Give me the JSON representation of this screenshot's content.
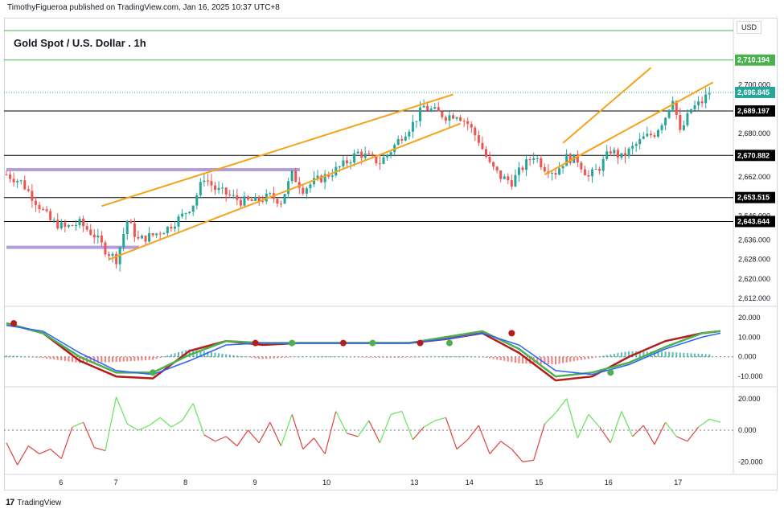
{
  "header": {
    "attribution": "TimothyFigueroa published on TradingView.com, Jan 16, 2025 10:37 UTC+8",
    "symbol_title": "Gold Spot / U.S. Dollar . 1h",
    "currency": "USD"
  },
  "footer": {
    "brand": "TradingView"
  },
  "colors": {
    "up": "#26a69a",
    "down": "#ef5350",
    "channel": "#f7a21b",
    "zone": "#b39ddb",
    "green_line": "#4caf50",
    "signal_line": "#2962ff",
    "macd_line": "#b71c1c",
    "hist_pos": "#26a69a",
    "hist_neg": "#ef5350"
  },
  "chart_data": [
    {
      "type": "candlestick",
      "title": "Gold Spot / U.S. Dollar . 1h",
      "x_tick_labels": [
        "6",
        "7",
        "8",
        "9",
        "10",
        "13",
        "14",
        "15",
        "16",
        "17"
      ],
      "y_tick_labels": [
        "2,612.000",
        "2,620.000",
        "2,628.000",
        "2,636.000",
        "2,646.000",
        "2,662.000",
        "2,680.000",
        "2,700.000"
      ],
      "ylim": [
        2609,
        2725
      ],
      "current_price": 2696.845,
      "horizontal_levels": [
        {
          "value": 2710.194,
          "color": "#4caf50",
          "label": "2,710.194"
        },
        {
          "value": 2689.197,
          "color": "#000000",
          "label": "2,689.197"
        },
        {
          "value": 2670.882,
          "color": "#000000",
          "label": "2,670.882"
        },
        {
          "value": 2653.515,
          "color": "#000000",
          "label": "2,653.515"
        },
        {
          "value": 2643.644,
          "color": "#000000",
          "label": "2,643.644"
        }
      ],
      "approx_close_path": [
        [
          0,
          2663
        ],
        [
          4,
          2660
        ],
        [
          8,
          2652
        ],
        [
          12,
          2644
        ],
        [
          16,
          2641
        ],
        [
          20,
          2643
        ],
        [
          24,
          2638
        ],
        [
          27,
          2632
        ],
        [
          30,
          2628
        ],
        [
          33,
          2644
        ],
        [
          36,
          2636
        ],
        [
          40,
          2638
        ],
        [
          44,
          2641
        ],
        [
          48,
          2646
        ],
        [
          51,
          2651
        ],
        [
          54,
          2662
        ],
        [
          57,
          2657
        ],
        [
          60,
          2655
        ],
        [
          64,
          2652
        ],
        [
          68,
          2652
        ],
        [
          72,
          2654
        ],
        [
          75,
          2652
        ],
        [
          78,
          2663
        ],
        [
          81,
          2657
        ],
        [
          84,
          2660
        ],
        [
          88,
          2663
        ],
        [
          92,
          2667
        ],
        [
          96,
          2672
        ],
        [
          99,
          2670
        ],
        [
          102,
          2668
        ],
        [
          105,
          2673
        ],
        [
          108,
          2679
        ],
        [
          111,
          2684
        ],
        [
          114,
          2691
        ],
        [
          117,
          2689
        ],
        [
          120,
          2687
        ],
        [
          123,
          2688
        ],
        [
          126,
          2684
        ],
        [
          129,
          2677
        ],
        [
          132,
          2667
        ],
        [
          135,
          2662
        ],
        [
          138,
          2660
        ],
        [
          141,
          2666
        ],
        [
          144,
          2671
        ],
        [
          147,
          2666
        ],
        [
          150,
          2664
        ],
        [
          153,
          2670
        ],
        [
          156,
          2669
        ],
        [
          159,
          2662
        ],
        [
          162,
          2666
        ],
        [
          165,
          2673
        ],
        [
          168,
          2670
        ],
        [
          171,
          2674
        ],
        [
          174,
          2678
        ],
        [
          177,
          2680
        ],
        [
          180,
          2687
        ],
        [
          182,
          2695
        ],
        [
          184,
          2680
        ],
        [
          187,
          2690
        ],
        [
          190,
          2693
        ],
        [
          192,
          2697
        ]
      ]
    },
    {
      "type": "line",
      "y_tick_labels": [
        "20.000",
        "10.000",
        "0.000",
        "-10.000"
      ],
      "ylim": [
        -14,
        24
      ],
      "series": [
        {
          "color": "#b71c1c",
          "x": [
            0,
            10,
            20,
            30,
            40,
            50,
            60,
            70,
            80,
            90,
            100,
            110,
            120,
            130,
            140,
            150,
            160,
            170,
            180,
            190,
            195
          ],
          "values": [
            17,
            12,
            -2,
            -10,
            -11,
            3,
            8,
            6,
            7,
            7,
            7,
            7,
            9,
            12,
            2,
            -12,
            -10,
            0,
            8,
            12,
            13
          ]
        },
        {
          "color": "#4caf50",
          "x": [
            0,
            10,
            20,
            30,
            40,
            50,
            60,
            70,
            80,
            90,
            100,
            110,
            120,
            130,
            140,
            150,
            160,
            170,
            180,
            190,
            195
          ],
          "values": [
            17,
            12,
            0,
            -8,
            -8,
            1,
            8,
            7,
            7,
            7,
            7,
            7,
            10,
            13,
            4,
            -10,
            -8,
            -3,
            5,
            12,
            13
          ]
        },
        {
          "color": "#2962ff",
          "x": [
            0,
            10,
            20,
            30,
            40,
            50,
            60,
            70,
            80,
            90,
            100,
            110,
            120,
            130,
            140,
            150,
            160,
            170,
            180,
            190,
            195
          ],
          "values": [
            16,
            13,
            2,
            -7,
            -9,
            -2,
            6,
            7,
            7,
            7,
            7,
            7,
            9,
            12,
            6,
            -7,
            -9,
            -4,
            4,
            10,
            12
          ]
        }
      ]
    },
    {
      "type": "line",
      "y_tick_labels": [
        "20.000",
        "0.000",
        "-20.000"
      ],
      "ylim": [
        -27,
        26
      ],
      "series": [
        {
          "color": "#ef5350",
          "x": [
            0,
            3,
            6,
            9,
            12,
            15,
            18,
            21,
            24,
            27,
            30,
            33,
            36,
            39,
            42,
            45,
            48,
            51,
            54,
            57,
            60,
            63,
            66,
            69,
            72,
            75,
            78,
            81,
            84,
            87,
            90,
            93,
            96,
            99,
            102,
            105,
            108,
            111,
            114,
            117,
            120,
            123,
            126,
            129,
            132,
            135,
            138,
            141,
            144,
            147,
            150,
            153,
            156,
            159,
            162,
            165,
            168,
            171,
            174,
            177,
            180,
            183,
            186,
            189,
            192,
            195
          ],
          "values": [
            -8,
            -22,
            -10,
            -15,
            -12,
            -18,
            2,
            5,
            -11,
            -13,
            21,
            4,
            0,
            3,
            8,
            2,
            6,
            17,
            -3,
            -7,
            -4,
            -10,
            0,
            -8,
            5,
            -10,
            10,
            -12,
            -5,
            -15,
            12,
            -2,
            -4,
            6,
            -8,
            10,
            12,
            -6,
            2,
            6,
            8,
            -12,
            -6,
            3,
            -15,
            -7,
            -12,
            -20,
            -19,
            4,
            11,
            20,
            -5,
            10,
            2,
            -8,
            12,
            -4,
            3,
            -9,
            5,
            -4,
            -7,
            2,
            7,
            5
          ]
        }
      ]
    }
  ]
}
